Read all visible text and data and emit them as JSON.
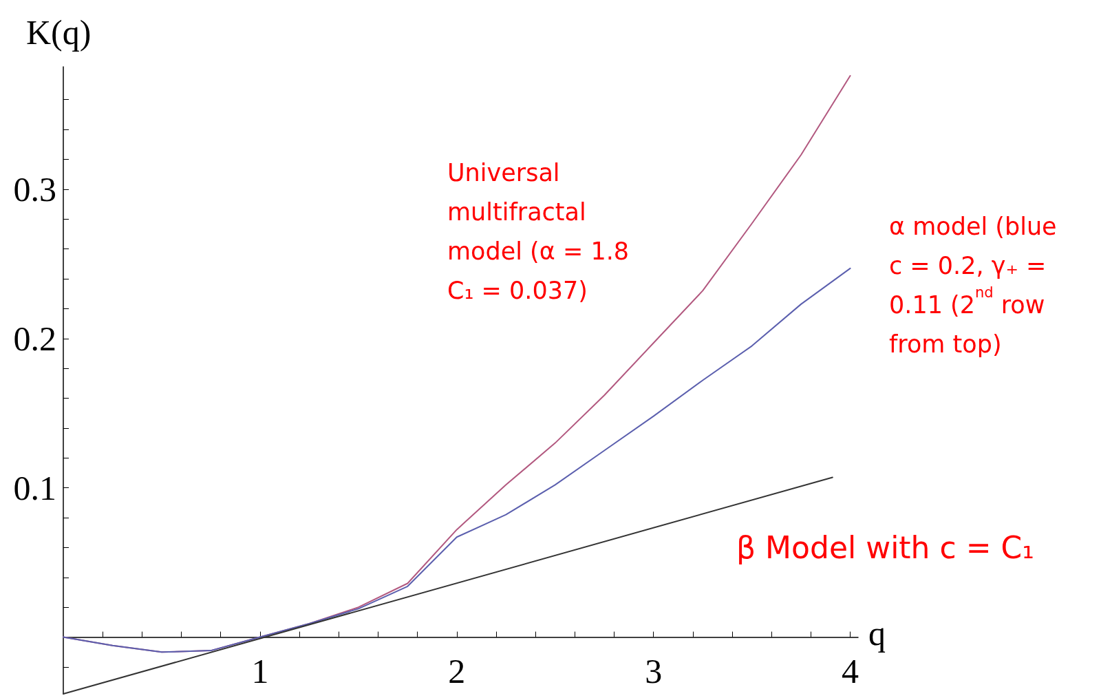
{
  "chart_data": {
    "type": "line",
    "xlabel": "q",
    "ylabel": "K(q)",
    "annotations": [
      "Universal\nmultifractal\nmodel (α = 1.8\nC₁ = 0.037)",
      "α model (blue\nc = 0.2, γ₊ =\n0.11 (2$^{nd}$ row\nfrom top)",
      "β Model with c = C₁"
    ],
    "series": [
      {
        "color": "#b2587f",
        "x": [
          0,
          0.25,
          0.5,
          0.75,
          1,
          1.25,
          1.5,
          1.75,
          2,
          2.25,
          2.5,
          2.75,
          3,
          3.25,
          3.5,
          3.75,
          4
        ],
        "values": [
          0,
          -0.0056,
          -0.01,
          -0.009,
          0,
          0.009,
          0.02,
          0.036,
          0.072,
          0.102,
          0.13,
          0.162,
          0.197,
          0.232,
          0.277,
          0.323,
          0.376
        ]
      },
      {
        "color": "#5b5fae",
        "x": [
          0,
          0.25,
          0.5,
          0.75,
          1,
          1.25,
          1.5,
          1.75,
          2,
          2.25,
          2.5,
          2.75,
          3,
          3.25,
          3.5,
          3.75,
          4
        ],
        "values": [
          0,
          -0.0056,
          -0.01,
          -0.009,
          0,
          0.009,
          0.019,
          0.034,
          0.067,
          0.082,
          0.102,
          0.125,
          0.148,
          0.172,
          0.195,
          0.223,
          0.247
        ]
      },
      {
        "color": "#333333",
        "x": [
          0,
          3.91
        ],
        "values": [
          -0.038,
          0.107
        ]
      }
    ],
    "xlim": [
      0,
      4.04
    ],
    "ylim": [
      -0.038,
      0.382
    ],
    "xticks": [
      {
        "value": 0.2,
        "label": null
      },
      {
        "value": 0.4,
        "label": null
      },
      {
        "value": 0.6,
        "label": null
      },
      {
        "value": 0.8,
        "label": null
      },
      1,
      {
        "value": 1.2,
        "label": null
      },
      {
        "value": 1.4,
        "label": null
      },
      {
        "value": 1.6,
        "label": null
      },
      {
        "value": 1.8,
        "label": null
      },
      2,
      {
        "value": 2.2,
        "label": null
      },
      {
        "value": 2.4,
        "label": null
      },
      {
        "value": 2.6,
        "label": null
      },
      {
        "value": 2.8,
        "label": null
      },
      3,
      {
        "value": 3.2,
        "label": null
      },
      {
        "value": 3.4,
        "label": null
      },
      {
        "value": 3.6,
        "label": null
      },
      {
        "value": 3.8,
        "label": null
      },
      4
    ],
    "yticks": [
      {
        "value": -0.02,
        "label": null
      },
      {
        "value": 0.02,
        "label": null
      },
      {
        "value": 0.04,
        "label": null
      },
      {
        "value": 0.06,
        "label": null
      },
      {
        "value": 0.08,
        "label": null
      },
      0.1,
      {
        "value": 0.12,
        "label": null
      },
      {
        "value": 0.14,
        "label": null
      },
      {
        "value": 0.16,
        "label": null
      },
      {
        "value": 0.18,
        "label": null
      },
      0.2,
      {
        "value": 0.22,
        "label": null
      },
      {
        "value": 0.24,
        "label": null
      },
      {
        "value": 0.26,
        "label": null
      },
      {
        "value": 0.28,
        "label": null
      },
      0.3,
      {
        "value": 0.32,
        "label": null
      },
      {
        "value": 0.34,
        "label": null
      },
      {
        "value": 0.36,
        "label": null
      }
    ],
    "marker": "none",
    "line_style": "solid"
  }
}
